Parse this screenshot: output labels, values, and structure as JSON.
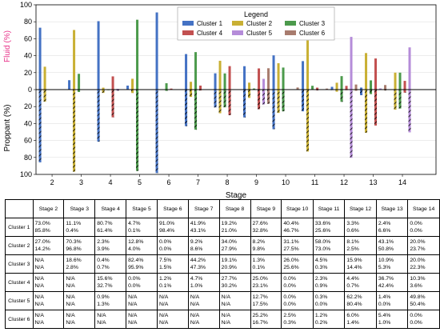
{
  "chart_data": {
    "type": "bar",
    "xlabel": "Stage",
    "ylabel_top": "Fluid (%)",
    "ylabel_bottom": "Proppant (%)",
    "ylim": [
      -100,
      100
    ],
    "ytick_labels": [
      "100",
      "80",
      "60",
      "40",
      "20",
      "0",
      "20",
      "40",
      "60",
      "80",
      "100"
    ],
    "categories": [
      "2",
      "3",
      "4",
      "5",
      "6",
      "7",
      "8",
      "9",
      "10",
      "11",
      "12",
      "13",
      "14"
    ],
    "legend_title": "Legend",
    "legend_position": "top-center",
    "colors": [
      "#4472c4",
      "#c9b034",
      "#4c9a4c",
      "#c25050",
      "#b58cd9",
      "#a87c6e"
    ],
    "series": [
      {
        "name": "Cluster 1",
        "fluid": [
          73.0,
          11.1,
          80.7,
          4.7,
          91.0,
          41.9,
          19.2,
          27.6,
          40.4,
          33.6,
          3.3,
          2.4,
          0.0
        ],
        "proppant": [
          85.8,
          0.4,
          61.4,
          0.1,
          98.4,
          43.1,
          21.0,
          32.8,
          46.7,
          25.6,
          0.6,
          6.6,
          0.0
        ]
      },
      {
        "name": "Cluster 2",
        "fluid": [
          27.0,
          70.3,
          2.3,
          12.8,
          0.0,
          9.2,
          34.0,
          8.2,
          31.1,
          58.0,
          8.1,
          43.1,
          20.0
        ],
        "proppant": [
          14.2,
          96.8,
          3.9,
          4.0,
          0.0,
          8.6,
          27.9,
          9.8,
          27.5,
          73.0,
          2.5,
          50.8,
          23.7
        ]
      },
      {
        "name": "Cluster 3",
        "fluid": [
          null,
          18.6,
          0.4,
          82.4,
          7.5,
          44.2,
          19.1,
          1.3,
          26.0,
          4.5,
          15.9,
          10.9,
          20.0
        ],
        "proppant": [
          null,
          2.8,
          0.7,
          95.9,
          1.5,
          47.3,
          20.9,
          0.1,
          25.6,
          0.3,
          14.4,
          5.3,
          22.3
        ]
      },
      {
        "name": "Cluster 4",
        "fluid": [
          null,
          null,
          15.6,
          0.0,
          1.2,
          4.7,
          27.7,
          25.0,
          0.0,
          2.3,
          4.4,
          36.7,
          10.3
        ],
        "proppant": [
          null,
          null,
          32.7,
          0.0,
          0.1,
          1.0,
          30.2,
          23.1,
          0.0,
          0.9,
          0.7,
          42.4,
          3.6
        ]
      },
      {
        "name": "Cluster 5",
        "fluid": [
          null,
          null,
          0.9,
          null,
          null,
          null,
          null,
          12.7,
          0.0,
          0.3,
          62.2,
          1.4,
          49.8
        ],
        "proppant": [
          null,
          null,
          1.3,
          null,
          null,
          null,
          null,
          17.5,
          0.0,
          0.0,
          80.4,
          0.0,
          50.4
        ]
      },
      {
        "name": "Cluster 6",
        "fluid": [
          null,
          null,
          null,
          null,
          null,
          null,
          null,
          25.2,
          2.5,
          1.2,
          6.0,
          5.4,
          0.0
        ],
        "proppant": [
          null,
          null,
          null,
          null,
          null,
          null,
          null,
          16.7,
          0.3,
          0.2,
          1.4,
          1.0,
          0.0
        ]
      }
    ]
  },
  "table": {
    "headers": [
      "Stage 2",
      "Stage 3",
      "Stage 4",
      "Stage 5",
      "Stage 6",
      "Stage 7",
      "Stage 8",
      "Stage 9",
      "Stage 10",
      "Stage 11",
      "Stage 12",
      "Stage 13",
      "Stage 14"
    ],
    "rows": [
      {
        "label": "Cluster 1",
        "cells": [
          [
            "73.0%",
            "85.8%"
          ],
          [
            "11.1%",
            "0.4%"
          ],
          [
            "80.7%",
            "61.4%"
          ],
          [
            "4.7%",
            "0.1%"
          ],
          [
            "91.0%",
            "98.4%"
          ],
          [
            "41.9%",
            "43.1%"
          ],
          [
            "19.2%",
            "21.0%"
          ],
          [
            "27.6%",
            "32.8%"
          ],
          [
            "40.4%",
            "46.7%"
          ],
          [
            "33.6%",
            "25.6%"
          ],
          [
            "3.3%",
            "0.6%"
          ],
          [
            "2.4%",
            "6.6%"
          ],
          [
            "0.0%",
            "0.0%"
          ]
        ]
      },
      {
        "label": "Cluster 2",
        "cells": [
          [
            "27.0%",
            "14.2%"
          ],
          [
            "70.3%",
            "96.8%"
          ],
          [
            "2.3%",
            "3.9%"
          ],
          [
            "12.8%",
            "4.0%"
          ],
          [
            "0.0%",
            "0.0%"
          ],
          [
            "9.2%",
            "8.6%"
          ],
          [
            "34.0%",
            "27.9%"
          ],
          [
            "8.2%",
            "9.8%"
          ],
          [
            "31.1%",
            "27.5%"
          ],
          [
            "58.0%",
            "73.0%"
          ],
          [
            "8.1%",
            "2.5%"
          ],
          [
            "43.1%",
            "50.8%"
          ],
          [
            "20.0%",
            "23.7%"
          ]
        ]
      },
      {
        "label": "Cluster 3",
        "cells": [
          [
            "N/A",
            "N/A"
          ],
          [
            "18.6%",
            "2.8%"
          ],
          [
            "0.4%",
            "0.7%"
          ],
          [
            "82.4%",
            "95.9%"
          ],
          [
            "7.5%",
            "1.5%"
          ],
          [
            "44.2%",
            "47.3%"
          ],
          [
            "19.1%",
            "20.9%"
          ],
          [
            "1.3%",
            "0.1%"
          ],
          [
            "26.0%",
            "25.6%"
          ],
          [
            "4.5%",
            "0.3%"
          ],
          [
            "15.9%",
            "14.4%"
          ],
          [
            "10.9%",
            "5.3%"
          ],
          [
            "20.0%",
            "22.3%"
          ]
        ]
      },
      {
        "label": "Cluster 4",
        "cells": [
          [
            "N/A",
            "N/A"
          ],
          [
            "N/A",
            "N/A"
          ],
          [
            "15.6%",
            "32.7%"
          ],
          [
            "0.0%",
            "0.0%"
          ],
          [
            "1.2%",
            "0.1%"
          ],
          [
            "4.7%",
            "1.0%"
          ],
          [
            "27.7%",
            "30.2%"
          ],
          [
            "25.0%",
            "23.1%"
          ],
          [
            "0.0%",
            "0.0%"
          ],
          [
            "2.3%",
            "0.9%"
          ],
          [
            "4.4%",
            "0.7%"
          ],
          [
            "36.7%",
            "42.4%"
          ],
          [
            "10.3%",
            "3.6%"
          ]
        ]
      },
      {
        "label": "Cluster 5",
        "cells": [
          [
            "N/A",
            "N/A"
          ],
          [
            "N/A",
            "N/A"
          ],
          [
            "0.9%",
            "1.3%"
          ],
          [
            "N/A",
            "N/A"
          ],
          [
            "N/A",
            "N/A"
          ],
          [
            "N/A",
            "N/A"
          ],
          [
            "N/A",
            "N/A"
          ],
          [
            "12.7%",
            "17.5%"
          ],
          [
            "0.0%",
            "0.0%"
          ],
          [
            "0.3%",
            "0.0%"
          ],
          [
            "62.2%",
            "80.4%"
          ],
          [
            "1.4%",
            "0.0%"
          ],
          [
            "49.8%",
            "50.4%"
          ]
        ]
      },
      {
        "label": "Cluster 6",
        "cells": [
          [
            "N/A",
            "N/A"
          ],
          [
            "N/A",
            "N/A"
          ],
          [
            "N/A",
            "N/A"
          ],
          [
            "N/A",
            "N/A"
          ],
          [
            "N/A",
            "N/A"
          ],
          [
            "N/A",
            "N/A"
          ],
          [
            "N/A",
            "N/A"
          ],
          [
            "25.2%",
            "16.7%"
          ],
          [
            "2.5%",
            "0.3%"
          ],
          [
            "1.2%",
            "0.2%"
          ],
          [
            "6.0%",
            "1.4%"
          ],
          [
            "5.4%",
            "1.0%"
          ],
          [
            "0.0%",
            "0.0%"
          ]
        ]
      }
    ]
  }
}
